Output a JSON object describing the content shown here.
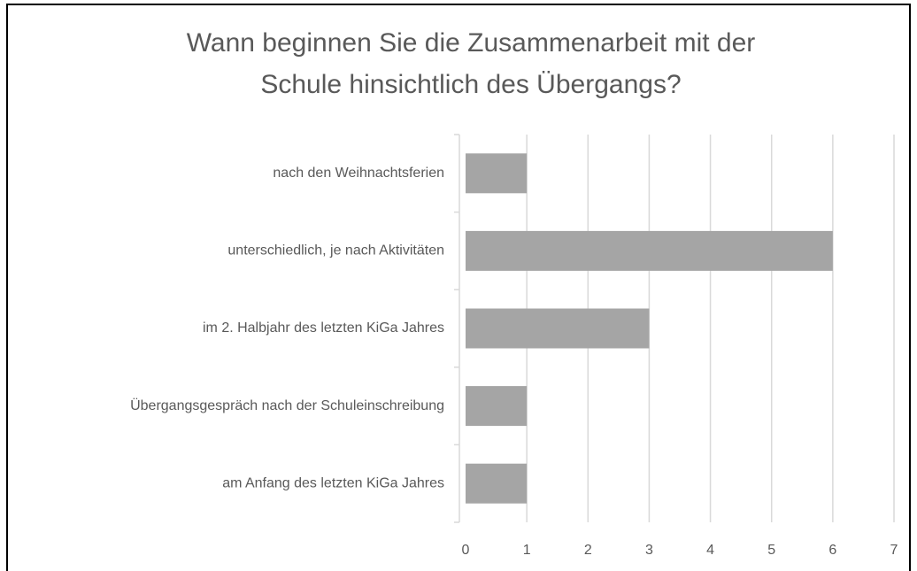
{
  "chart_data": {
    "type": "bar",
    "orientation": "horizontal",
    "title": [
      "Wann beginnen Sie die Zusammenarbeit mit der",
      "Schule hinsichtlich des Übergangs?"
    ],
    "categories": [
      "nach den Weihnachtsferien",
      "unterschiedlich, je nach Aktivitäten",
      "im 2. Halbjahr des letzten KiGa Jahres",
      "Übergangsgespräch nach der Schuleinschreibung",
      "am Anfang des letzten KiGa Jahres"
    ],
    "values": [
      1,
      6,
      3,
      1,
      1
    ],
    "color": "#a5a5a5",
    "xlim": [
      0,
      7
    ],
    "xticks": [
      0,
      1,
      2,
      3,
      4,
      5,
      6,
      7
    ],
    "grid": true
  }
}
